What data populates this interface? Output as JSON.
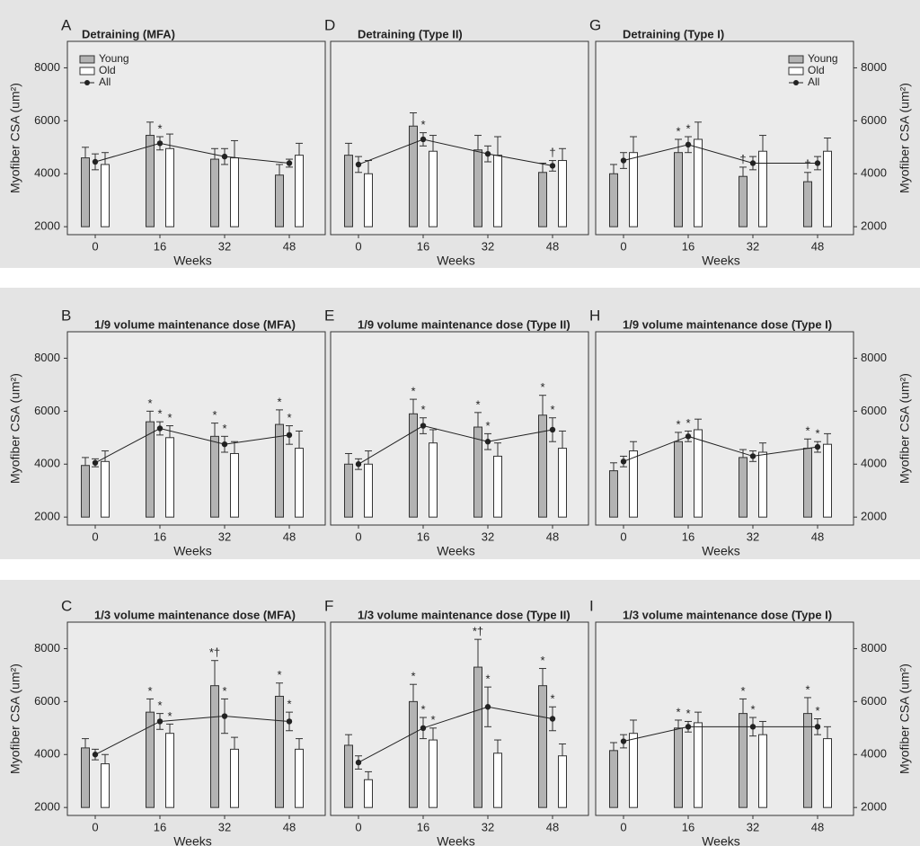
{
  "chart_data": [
    {
      "panel": "A",
      "type": "bar",
      "title": "Detraining (MFA)",
      "xlabel": "Weeks",
      "ylabel": "Myofiber CSA (um²)",
      "categories": [
        "0",
        "16",
        "32",
        "48"
      ],
      "ylim": [
        1700,
        9000
      ],
      "yticks": [
        2000,
        4000,
        6000,
        8000
      ],
      "y_axis_side": "left",
      "legend": "upper left",
      "series": [
        {
          "name": "Young",
          "kind": "bar",
          "color": "#b3b3b3",
          "values": [
            4600,
            5450,
            4550,
            3950
          ],
          "errors": [
            400,
            500,
            400,
            400
          ],
          "annotations": [
            null,
            null,
            null,
            null
          ]
        },
        {
          "name": "Old",
          "kind": "bar",
          "color": "#ffffff",
          "values": [
            4350,
            4950,
            4600,
            4700
          ],
          "errors": [
            450,
            550,
            650,
            450
          ],
          "annotations": [
            null,
            null,
            null,
            null
          ]
        },
        {
          "name": "All",
          "kind": "line",
          "color": "#222222",
          "values": [
            4450,
            5150,
            4650,
            4400
          ],
          "errors": [
            300,
            250,
            300,
            150
          ],
          "annotations": [
            null,
            "*",
            null,
            null
          ]
        }
      ]
    },
    {
      "panel": "D",
      "type": "bar",
      "title": "Detraining (Type II)",
      "xlabel": "Weeks",
      "categories": [
        "0",
        "16",
        "32",
        "48"
      ],
      "ylim": [
        1700,
        9000
      ],
      "y_axis_side": "none",
      "series": [
        {
          "kind": "bar",
          "color": "#b3b3b3",
          "values": [
            4700,
            5800,
            4900,
            4050
          ],
          "errors": [
            450,
            500,
            550,
            350
          ],
          "annotations": [
            null,
            null,
            null,
            null
          ]
        },
        {
          "kind": "bar",
          "color": "#ffffff",
          "values": [
            4000,
            4850,
            4700,
            4500
          ],
          "errors": [
            500,
            600,
            700,
            450
          ],
          "annotations": [
            null,
            null,
            null,
            null
          ]
        },
        {
          "kind": "line",
          "color": "#222222",
          "values": [
            4350,
            5300,
            4750,
            4300
          ],
          "errors": [
            300,
            250,
            300,
            200
          ],
          "annotations": [
            null,
            "*",
            null,
            "†"
          ]
        }
      ]
    },
    {
      "panel": "G",
      "type": "bar",
      "title": "Detraining (Type I)",
      "xlabel": "Weeks",
      "ylabel": "Myofiber CSA (um²)",
      "categories": [
        "0",
        "16",
        "32",
        "48"
      ],
      "ylim": [
        1700,
        9000
      ],
      "yticks": [
        2000,
        4000,
        6000,
        8000
      ],
      "y_axis_side": "right",
      "legend": "upper right",
      "series": [
        {
          "name": "Young",
          "kind": "bar",
          "color": "#b3b3b3",
          "values": [
            4000,
            4800,
            3900,
            3700
          ],
          "errors": [
            350,
            500,
            350,
            350
          ],
          "annotations": [
            null,
            "*",
            "†",
            "†"
          ]
        },
        {
          "name": "Old",
          "kind": "bar",
          "color": "#ffffff",
          "values": [
            4800,
            5300,
            4850,
            4850
          ],
          "errors": [
            600,
            650,
            600,
            500
          ],
          "annotations": [
            null,
            null,
            null,
            null
          ]
        },
        {
          "name": "All",
          "kind": "line",
          "color": "#222222",
          "values": [
            4500,
            5100,
            4400,
            4400
          ],
          "errors": [
            300,
            300,
            250,
            250
          ],
          "annotations": [
            null,
            "*",
            null,
            null
          ]
        }
      ]
    },
    {
      "panel": "B",
      "type": "bar",
      "title": "1/9 volume maintenance dose (MFA)",
      "xlabel": "Weeks",
      "ylabel": "Myofiber CSA (um²)",
      "categories": [
        "0",
        "16",
        "32",
        "48"
      ],
      "ylim": [
        1700,
        9000
      ],
      "yticks": [
        2000,
        4000,
        6000,
        8000
      ],
      "y_axis_side": "left",
      "series": [
        {
          "kind": "bar",
          "color": "#b3b3b3",
          "values": [
            3950,
            5600,
            5050,
            5500
          ],
          "errors": [
            300,
            400,
            500,
            550
          ],
          "annotations": [
            null,
            "*",
            "*",
            "*"
          ]
        },
        {
          "kind": "bar",
          "color": "#ffffff",
          "values": [
            4100,
            5000,
            4400,
            4600
          ],
          "errors": [
            400,
            450,
            450,
            650
          ],
          "annotations": [
            null,
            "*",
            null,
            null
          ]
        },
        {
          "kind": "line",
          "color": "#222222",
          "values": [
            4050,
            5350,
            4750,
            5100
          ],
          "errors": [
            150,
            250,
            300,
            350
          ],
          "annotations": [
            null,
            "*",
            "*",
            "*"
          ]
        }
      ]
    },
    {
      "panel": "E",
      "type": "bar",
      "title": "1/9 volume maintenance dose (Type II)",
      "xlabel": "Weeks",
      "categories": [
        "0",
        "16",
        "32",
        "48"
      ],
      "ylim": [
        1700,
        9000
      ],
      "y_axis_side": "none",
      "series": [
        {
          "kind": "bar",
          "color": "#b3b3b3",
          "values": [
            4000,
            5900,
            5400,
            5850
          ],
          "errors": [
            400,
            550,
            550,
            750
          ],
          "annotations": [
            null,
            "*",
            "*",
            "*"
          ]
        },
        {
          "kind": "bar",
          "color": "#ffffff",
          "values": [
            4000,
            4800,
            4300,
            4600
          ],
          "errors": [
            500,
            500,
            500,
            650
          ],
          "annotations": [
            null,
            null,
            null,
            null
          ]
        },
        {
          "kind": "line",
          "color": "#222222",
          "values": [
            4000,
            5450,
            4850,
            5300
          ],
          "errors": [
            200,
            300,
            300,
            450
          ],
          "annotations": [
            null,
            "*",
            "*",
            "*"
          ]
        }
      ]
    },
    {
      "panel": "H",
      "type": "bar",
      "title": "1/9 volume maintenance dose (Type I)",
      "xlabel": "Weeks",
      "ylabel": "Myofiber CSA (um²)",
      "categories": [
        "0",
        "16",
        "32",
        "48"
      ],
      "ylim": [
        1700,
        9000
      ],
      "yticks": [
        2000,
        4000,
        6000,
        8000
      ],
      "y_axis_side": "right",
      "series": [
        {
          "kind": "bar",
          "color": "#b3b3b3",
          "values": [
            3750,
            4850,
            4250,
            4600
          ],
          "errors": [
            300,
            350,
            300,
            350
          ],
          "annotations": [
            null,
            "*",
            null,
            "*"
          ]
        },
        {
          "kind": "bar",
          "color": "#ffffff",
          "values": [
            4500,
            5300,
            4450,
            4750
          ],
          "errors": [
            350,
            400,
            350,
            400
          ],
          "annotations": [
            null,
            null,
            null,
            null
          ]
        },
        {
          "kind": "line",
          "color": "#222222",
          "values": [
            4100,
            5050,
            4300,
            4650
          ],
          "errors": [
            200,
            200,
            200,
            200
          ],
          "annotations": [
            null,
            "*",
            null,
            "*"
          ]
        }
      ]
    },
    {
      "panel": "C",
      "type": "bar",
      "title": "1/3 volume maintenance dose (MFA)",
      "xlabel": "Weeks",
      "ylabel": "Myofiber CSA (um²)",
      "categories": [
        "0",
        "16",
        "32",
        "48"
      ],
      "ylim": [
        1700,
        9000
      ],
      "yticks": [
        2000,
        4000,
        6000,
        8000
      ],
      "y_axis_side": "left",
      "series": [
        {
          "kind": "bar",
          "color": "#b3b3b3",
          "values": [
            4250,
            5600,
            6600,
            6200
          ],
          "errors": [
            350,
            500,
            950,
            500
          ],
          "annotations": [
            null,
            "*",
            "*†",
            "*"
          ]
        },
        {
          "kind": "bar",
          "color": "#ffffff",
          "values": [
            3650,
            4800,
            4200,
            4200
          ],
          "errors": [
            350,
            350,
            450,
            400
          ],
          "annotations": [
            null,
            "*",
            null,
            null
          ]
        },
        {
          "kind": "line",
          "color": "#222222",
          "values": [
            4000,
            5250,
            5450,
            5250
          ],
          "errors": [
            200,
            300,
            650,
            350
          ],
          "annotations": [
            null,
            "*",
            "*",
            "*"
          ]
        }
      ]
    },
    {
      "panel": "F",
      "type": "bar",
      "title": "1/3 volume maintenance dose (Type II)",
      "xlabel": "Weeks",
      "categories": [
        "0",
        "16",
        "32",
        "48"
      ],
      "ylim": [
        1700,
        9000
      ],
      "y_axis_side": "none",
      "series": [
        {
          "kind": "bar",
          "color": "#b3b3b3",
          "values": [
            4350,
            6000,
            7300,
            6600
          ],
          "errors": [
            400,
            650,
            1050,
            650
          ],
          "annotations": [
            null,
            "*",
            "*†",
            "*"
          ]
        },
        {
          "kind": "bar",
          "color": "#ffffff",
          "values": [
            3050,
            4550,
            4050,
            3950
          ],
          "errors": [
            300,
            450,
            500,
            450
          ],
          "annotations": [
            null,
            "*",
            null,
            null
          ]
        },
        {
          "kind": "line",
          "color": "#222222",
          "values": [
            3700,
            5000,
            5800,
            5350
          ],
          "errors": [
            250,
            400,
            750,
            450
          ],
          "annotations": [
            null,
            "*",
            "*",
            "*"
          ]
        }
      ]
    },
    {
      "panel": "I",
      "type": "bar",
      "title": "1/3 volume maintenance dose (Type I)",
      "xlabel": "Weeks",
      "ylabel": "Myofiber CSA (um²)",
      "categories": [
        "0",
        "16",
        "32",
        "48"
      ],
      "ylim": [
        1700,
        9000
      ],
      "yticks": [
        2000,
        4000,
        6000,
        8000
      ],
      "y_axis_side": "right",
      "series": [
        {
          "kind": "bar",
          "color": "#b3b3b3",
          "values": [
            4150,
            5000,
            5550,
            5550
          ],
          "errors": [
            300,
            300,
            550,
            600
          ],
          "annotations": [
            null,
            "*",
            "*",
            "*"
          ]
        },
        {
          "kind": "bar",
          "color": "#ffffff",
          "values": [
            4800,
            5200,
            4750,
            4600
          ],
          "errors": [
            500,
            400,
            500,
            450
          ],
          "annotations": [
            null,
            null,
            null,
            null
          ]
        },
        {
          "kind": "line",
          "color": "#222222",
          "values": [
            4500,
            5050,
            5050,
            5050
          ],
          "errors": [
            250,
            200,
            350,
            300
          ],
          "annotations": [
            null,
            "*",
            "*",
            "*"
          ]
        }
      ]
    }
  ]
}
